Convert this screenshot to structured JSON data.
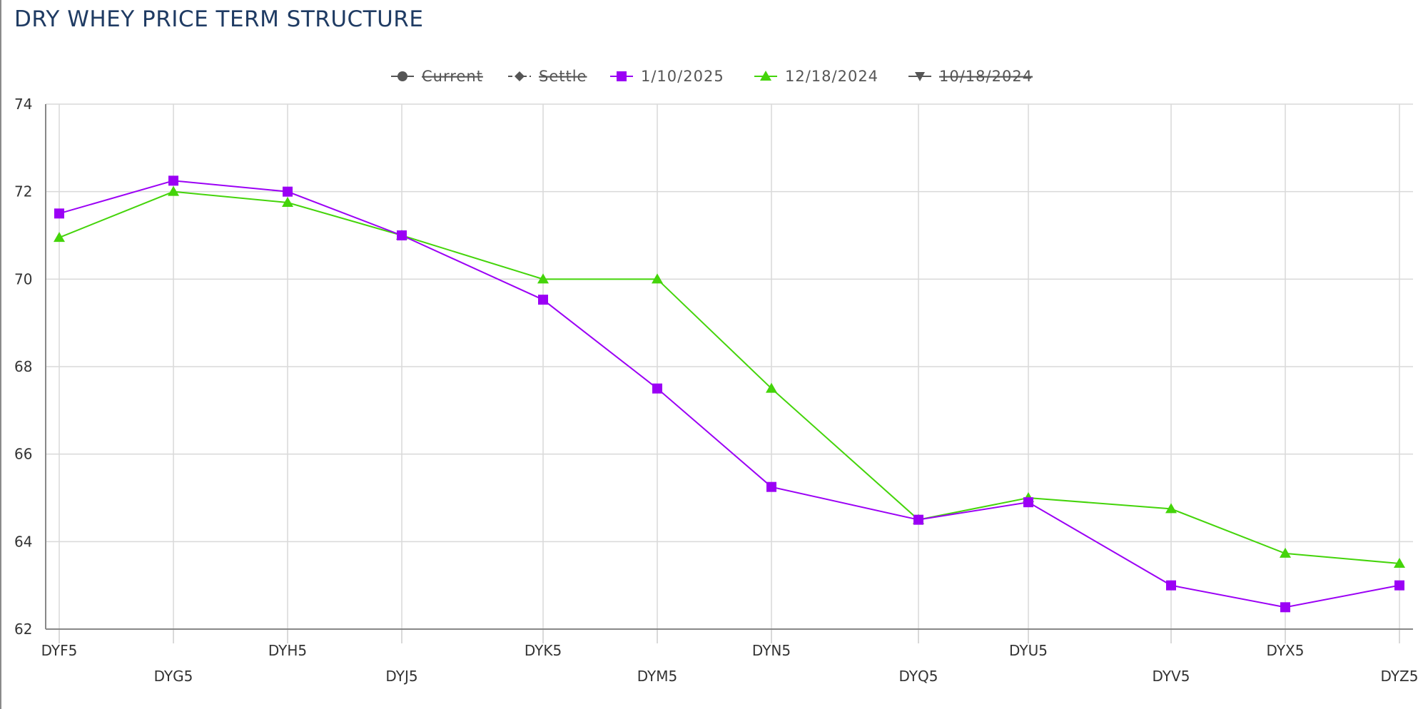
{
  "title": "DRY WHEY PRICE TERM STRUCTURE",
  "colors": {
    "title": "#1f3b63",
    "grid": "#d9d9d9",
    "axis": "#888888",
    "hidden_legend": "#555555"
  },
  "chart_data": {
    "type": "line",
    "title": "DRY WHEY PRICE TERM STRUCTURE",
    "xlabel": "",
    "ylabel": "",
    "categories": [
      "DYF5",
      "DYG5",
      "DYH5",
      "DYJ5",
      "DYK5",
      "DYM5",
      "DYN5",
      "DYQ5",
      "DYU5",
      "DYV5",
      "DYX5",
      "DYZ5"
    ],
    "ylim": [
      62,
      74
    ],
    "yticks": [
      62,
      64,
      66,
      68,
      70,
      72,
      74
    ],
    "grid": true,
    "legend_position": "top-center",
    "legend": [
      {
        "name": "Current",
        "marker": "circle",
        "color": "#555555",
        "hidden": true
      },
      {
        "name": "Settle",
        "marker": "diamond",
        "color": "#555555",
        "hidden": true
      },
      {
        "name": "1/10/2025",
        "marker": "square",
        "color": "#9b00f5",
        "hidden": false
      },
      {
        "name": "12/18/2024",
        "marker": "triangle",
        "color": "#44d40a",
        "hidden": false
      },
      {
        "name": "10/18/2024",
        "marker": "triangle-down",
        "color": "#555555",
        "hidden": true
      }
    ],
    "series": [
      {
        "name": "12/18/2024",
        "color": "#44d40a",
        "marker": "triangle",
        "values": [
          70.95,
          72.0,
          71.75,
          71.0,
          70.0,
          70.0,
          67.5,
          64.5,
          65.0,
          64.75,
          63.73,
          63.5
        ]
      },
      {
        "name": "1/10/2025",
        "color": "#9b00f5",
        "marker": "square",
        "values": [
          71.5,
          72.25,
          72.0,
          71.0,
          69.53,
          67.5,
          65.25,
          64.5,
          64.9,
          63.0,
          62.5,
          63.0
        ]
      }
    ]
  }
}
